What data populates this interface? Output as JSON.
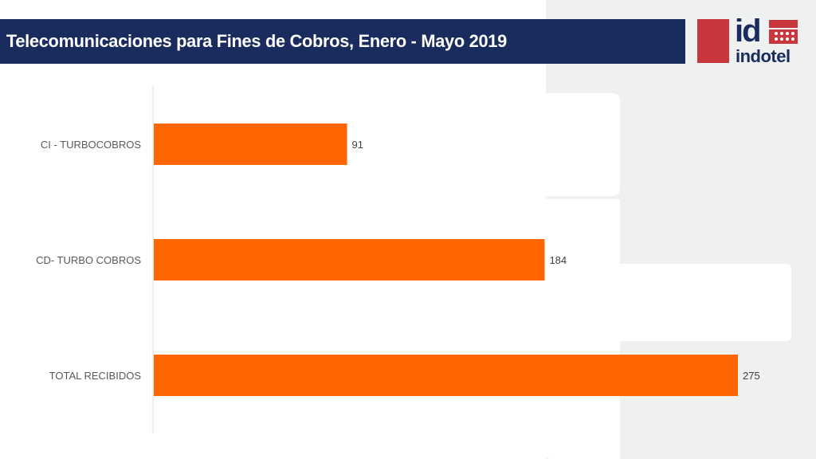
{
  "header": {
    "title": "Telecomunicaciones para Fines de Cobros, Enero - Mayo 2019"
  },
  "logo": {
    "mark": "id",
    "name": "indotel"
  },
  "colors": {
    "title_bar": "#1a2b5e",
    "bar": "#ff6600",
    "logo_red": "#c8373d",
    "background_panel": "#eff0f0"
  },
  "chart_data": {
    "type": "bar",
    "orientation": "horizontal",
    "categories": [
      "CI - TURBOCOBROS",
      "CD- TURBO COBROS",
      "TOTAL RECIBIDOS"
    ],
    "values": [
      91,
      184,
      275
    ],
    "data_labels": [
      "91",
      "184",
      "275"
    ],
    "xlim": [
      0,
      275
    ],
    "grid": false,
    "legend": "none"
  }
}
